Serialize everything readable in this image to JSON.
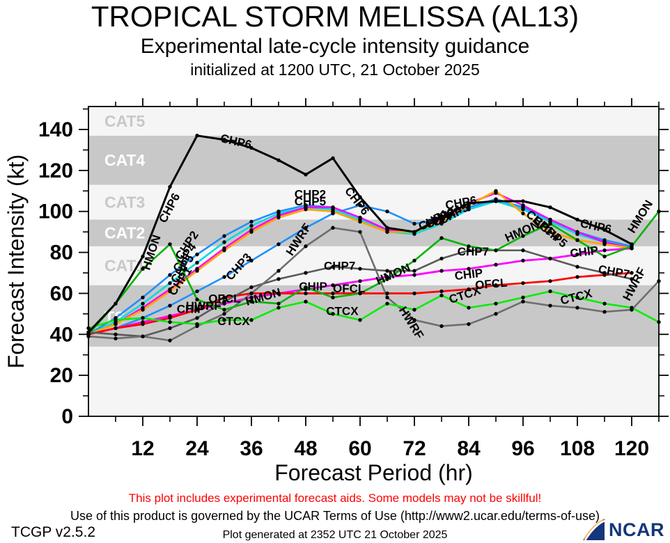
{
  "title": {
    "line1": "TROPICAL STORM MELISSA (AL13)",
    "line2": "Experimental late-cycle intensity guidance",
    "line3": "initialized at 1200 UTC, 21 October 2025"
  },
  "axes": {
    "x_label": "Forecast Period (hr)",
    "y_label": "Forecast Intensity (kt)",
    "x_major_ticks": [
      12,
      24,
      36,
      48,
      60,
      72,
      84,
      96,
      108,
      120
    ],
    "x_minor_ticks": [
      6,
      18,
      30,
      42,
      54,
      66,
      78,
      90,
      102,
      114,
      126
    ],
    "y_major_ticks": [
      0,
      20,
      40,
      60,
      80,
      100,
      120,
      140
    ],
    "y_minor_ticks": [
      10,
      30,
      50,
      70,
      90,
      110,
      130,
      150
    ],
    "x_range": [
      0,
      126
    ],
    "y_range": [
      0,
      151.2
    ]
  },
  "category_bands": {
    "fills": [
      {
        "from": 0,
        "to": 34,
        "fill": "#f5f5f5"
      },
      {
        "from": 34,
        "to": 64,
        "fill": "#c8c8c8"
      },
      {
        "from": 64,
        "to": 83,
        "fill": "#f5f5f5"
      },
      {
        "from": 83,
        "to": 96,
        "fill": "#c8c8c8"
      },
      {
        "from": 96,
        "to": 113,
        "fill": "#f5f5f5"
      },
      {
        "from": 113,
        "to": 137,
        "fill": "#c8c8c8"
      },
      {
        "from": 137,
        "to": 151.2,
        "fill": "#f5f5f5"
      }
    ],
    "labels": [
      {
        "text": "TS",
        "kt": 48.5,
        "color": "#ffffff"
      },
      {
        "text": "CAT1",
        "kt": 73.5,
        "color": "#c8c8c8"
      },
      {
        "text": "CAT2",
        "kt": 89.5,
        "color": "#ffffff"
      },
      {
        "text": "CAT3",
        "kt": 104.5,
        "color": "#c8c8c8"
      },
      {
        "text": "CAT4",
        "kt": 125,
        "color": "#ffffff"
      },
      {
        "text": "CAT5",
        "kt": 144,
        "color": "#c8c8c8"
      }
    ]
  },
  "chart_data": {
    "type": "line",
    "title": "TROPICAL STORM MELISSA (AL13) experimental late-cycle intensity guidance",
    "xlabel": "Forecast Period (hr)",
    "ylabel": "Forecast Intensity (kt)",
    "xlim": [
      0,
      126
    ],
    "ylim": [
      0,
      151.2
    ],
    "x_hours": [
      0,
      6,
      12,
      18,
      24,
      30,
      36,
      42,
      48,
      54,
      60,
      66,
      72,
      78,
      84,
      90,
      96,
      102,
      108,
      114,
      120,
      126
    ],
    "series": [
      {
        "name": "CHP3",
        "color": "#1e90ff",
        "width": 2.6,
        "values": [
          40,
          43,
          48,
          54,
          61,
          68,
          76,
          84,
          92,
          99,
          103,
          100,
          94,
          96,
          101,
          105,
          101,
          95,
          89,
          85,
          82,
          null
        ]
      },
      {
        "name": "CHP2",
        "color": "#1e90ff",
        "width": 2.6,
        "values": [
          40,
          48,
          58,
          69,
          79,
          88,
          95,
          100,
          103,
          102,
          97,
          91,
          90,
          95,
          102,
          106,
          102,
          96,
          90,
          86,
          83,
          null
        ]
      },
      {
        "name": "CHP4",
        "color": "#00dcdc",
        "width": 2.6,
        "values": [
          40,
          46,
          55,
          65,
          75,
          85,
          93,
          99,
          102,
          101,
          96,
          90,
          89,
          94,
          101,
          105,
          101,
          95,
          89,
          85,
          82,
          null
        ]
      },
      {
        "name": "CHP5",
        "color": "#ff00ff",
        "width": 2.6,
        "values": [
          40,
          45,
          53,
          62,
          72,
          82,
          91,
          98,
          102,
          102,
          97,
          91,
          90,
          96,
          104,
          109,
          103,
          96,
          90,
          85,
          82,
          null
        ]
      },
      {
        "name": "CHP1",
        "color": "#ffa500",
        "width": 2.8,
        "values": [
          40,
          45,
          52,
          61,
          71,
          81,
          90,
          97,
          101,
          100,
          95,
          90,
          90,
          95,
          103,
          110,
          99,
          90,
          86,
          84,
          82,
          null
        ]
      },
      {
        "name": "CHIP",
        "color": "#ff00ff",
        "width": 2.8,
        "values": [
          40,
          43,
          46,
          49,
          52,
          55,
          58,
          60,
          62,
          64,
          66,
          68,
          69,
          71,
          72,
          74,
          76,
          77,
          79,
          81,
          82,
          null
        ]
      },
      {
        "name": "OFCL",
        "color": "#ff0000",
        "width": 2.8,
        "values": [
          40,
          43,
          45,
          48,
          52,
          58,
          60,
          60,
          60,
          60,
          60,
          60,
          60,
          61,
          62,
          64,
          65,
          66,
          68,
          69,
          70,
          null
        ]
      },
      {
        "name": "CHP7",
        "color": "#5a5a5a",
        "width": 2.6,
        "values": [
          41,
          40,
          39,
          43,
          48,
          56,
          63,
          67,
          70,
          73,
          72,
          71,
          71,
          77,
          81,
          81,
          81,
          77,
          73,
          70,
          67,
          null
        ]
      },
      {
        "name": "HWRF",
        "color": "#6e6e6e",
        "width": 2.6,
        "values": [
          39,
          38,
          39,
          37,
          44,
          50,
          60,
          71,
          83,
          92,
          90,
          58,
          47,
          44,
          45,
          50,
          56,
          54,
          53,
          51,
          52,
          66
        ]
      },
      {
        "name": "CTCX",
        "color": "#00ee00",
        "width": 2.6,
        "values": [
          43,
          47,
          48,
          46,
          45,
          47,
          47,
          53,
          56,
          50,
          47,
          55,
          52,
          59,
          53,
          55,
          58,
          61,
          58,
          55,
          53,
          46
        ]
      },
      {
        "name": "HMON",
        "color": "#00b400",
        "width": 2.6,
        "values": [
          40,
          55,
          72,
          84,
          57,
          52,
          56,
          55,
          63,
          58,
          60,
          67,
          76,
          87,
          83,
          81,
          88,
          94,
          86,
          78,
          83,
          100
        ]
      },
      {
        "name": "CHP6",
        "color": "#000000",
        "width": 3.0,
        "values": [
          41,
          55,
          78,
          112,
          137,
          135,
          131,
          125,
          118,
          126,
          107,
          92,
          90,
          97,
          104,
          105,
          105,
          102,
          96,
          91,
          84,
          null
        ]
      }
    ]
  },
  "line_labels": [
    {
      "text": "CHP6",
      "hr": 17,
      "kt": 94,
      "rot": -62
    },
    {
      "text": "CHP6",
      "hr": 29,
      "kt": 134,
      "rot": 13
    },
    {
      "text": "CHP6",
      "hr": 56.5,
      "kt": 110,
      "rot": 52
    },
    {
      "text": "CHP6",
      "hr": 79,
      "kt": 101,
      "rot": -10
    },
    {
      "text": "CHP6",
      "hr": 108.5,
      "kt": 92.5,
      "rot": 12
    },
    {
      "text": "HMON",
      "hr": 13.5,
      "kt": 71,
      "rot": -72
    },
    {
      "text": "HMON",
      "hr": 35,
      "kt": 54,
      "rot": -16
    },
    {
      "text": "HMON",
      "hr": 64,
      "kt": 64,
      "rot": -24
    },
    {
      "text": "HMON",
      "hr": 92.5,
      "kt": 85,
      "rot": -24
    },
    {
      "text": "HMON",
      "hr": 120.5,
      "kt": 89,
      "rot": -58
    },
    {
      "text": "HWRF",
      "hr": 45,
      "kt": 78,
      "rot": -57
    },
    {
      "text": "HWRF",
      "hr": 21.5,
      "kt": 52,
      "rot": 0
    },
    {
      "text": "HWRF",
      "hr": 68.5,
      "kt": 52,
      "rot": 58
    },
    {
      "text": "HWRF",
      "hr": 119.5,
      "kt": 56,
      "rot": -62
    },
    {
      "text": "CHP7",
      "hr": 52,
      "kt": 71.5,
      "rot": 0
    },
    {
      "text": "CHP7",
      "hr": 81.5,
      "kt": 78.5,
      "rot": 0
    },
    {
      "text": "CHP7",
      "hr": 112.5,
      "kt": 70,
      "rot": 10
    },
    {
      "text": "CHIP",
      "hr": 19.5,
      "kt": 50.5,
      "rot": 0
    },
    {
      "text": "CHIP",
      "hr": 46.5,
      "kt": 61.5,
      "rot": 0
    },
    {
      "text": "CHIP",
      "hr": 81,
      "kt": 66.5,
      "rot": -7
    },
    {
      "text": "CHIP",
      "hr": 106.5,
      "kt": 77.5,
      "rot": -7
    },
    {
      "text": "OFCL",
      "hr": 26.5,
      "kt": 55.5,
      "rot": 0
    },
    {
      "text": "OFCL",
      "hr": 54,
      "kt": 60.5,
      "rot": 0
    },
    {
      "text": "OFCL",
      "hr": 85.5,
      "kt": 62,
      "rot": -5
    },
    {
      "text": "CTCX",
      "hr": 28.5,
      "kt": 44.5,
      "rot": 0
    },
    {
      "text": "CTCX",
      "hr": 52.5,
      "kt": 49.5,
      "rot": 0
    },
    {
      "text": "CTCX",
      "hr": 80,
      "kt": 55,
      "rot": -18
    },
    {
      "text": "CTCX",
      "hr": 104.5,
      "kt": 54.5,
      "rot": -14
    },
    {
      "text": "CHP3",
      "hr": 31.5,
      "kt": 66,
      "rot": -48
    },
    {
      "text": "CHP2",
      "hr": 20.5,
      "kt": 76,
      "rot": -56
    },
    {
      "text": "CHP4",
      "hr": 20,
      "kt": 70,
      "rot": -56
    },
    {
      "text": "CHP5",
      "hr": 19.5,
      "kt": 64.5,
      "rot": -56
    },
    {
      "text": "CHP1",
      "hr": 19,
      "kt": 58.5,
      "rot": -56
    },
    {
      "text": "CHP2",
      "hr": 45.5,
      "kt": 106.5,
      "rot": 0
    },
    {
      "text": "CHP5",
      "hr": 45.5,
      "kt": 103,
      "rot": 0
    },
    {
      "text": "CHP1",
      "hr": 73.5,
      "kt": 90.5,
      "rot": -28
    },
    {
      "text": "CHP2",
      "hr": 75,
      "kt": 91.5,
      "rot": -28
    },
    {
      "text": "CHP4",
      "hr": 76.5,
      "kt": 92.5,
      "rot": -28
    },
    {
      "text": "CHP5",
      "hr": 78,
      "kt": 93.5,
      "rot": -28
    },
    {
      "text": "CHP1",
      "hr": 96.5,
      "kt": 98,
      "rot": 40
    },
    {
      "text": "CHP4",
      "hr": 98,
      "kt": 95,
      "rot": 40
    },
    {
      "text": "CHP5",
      "hr": 99.5,
      "kt": 92,
      "rot": 40
    }
  ],
  "footer": {
    "warning": "This plot includes experimental forecast aids. Some models may not be skillful!",
    "terms": "Use of this product is governed by the UCAR Terms of Use (http://www2.ucar.edu/terms-of-use)",
    "version": "TCGP v2.5.2",
    "generated": "Plot generated at 2352 UTC  21 October 2025",
    "logo_text": "NCAR"
  }
}
